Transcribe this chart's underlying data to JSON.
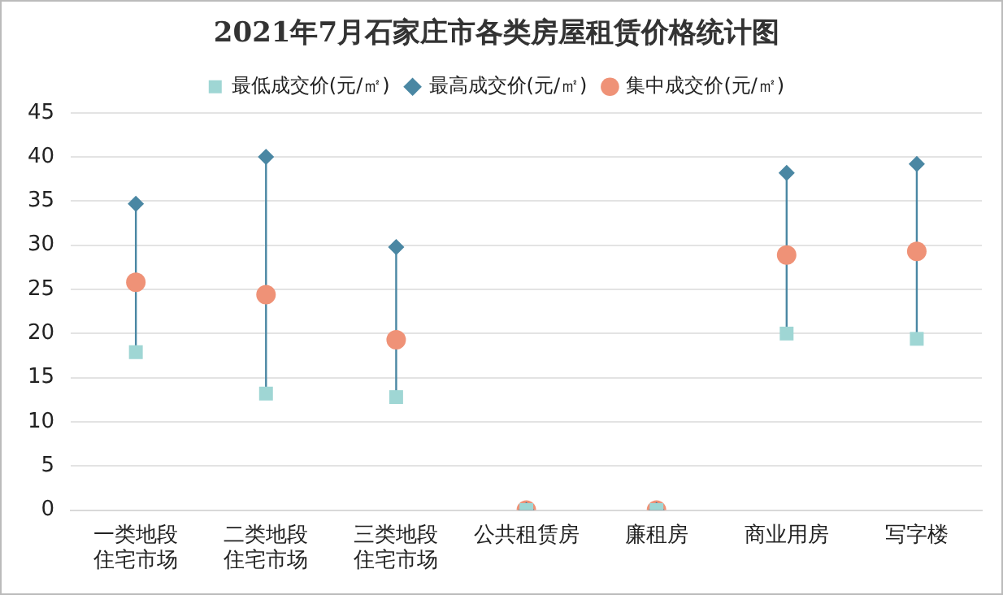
{
  "chart_data": {
    "type": "scatter",
    "title": "2021年7月石家庄市各类房屋租赁价格统计图",
    "categories": [
      "一类地段住宅市场",
      "二类地段住宅市场",
      "三类地段住宅市场",
      "公共租赁房",
      "廉租房",
      "商业用房",
      "写字楼"
    ],
    "series": [
      {
        "name": "最低成交价(元/㎡)",
        "color": "#9fd6d4",
        "marker": "square",
        "values": [
          17.9,
          13.2,
          12.8,
          0,
          0,
          20,
          19.4
        ]
      },
      {
        "name": "最高成交价(元/㎡)",
        "color": "#4a87a3",
        "marker": "diamond",
        "values": [
          34.7,
          40,
          29.8,
          0,
          0,
          38.2,
          39.2
        ]
      },
      {
        "name": "集中成交价(元/㎡)",
        "color": "#ef9277",
        "marker": "circle",
        "values": [
          25.8,
          24.4,
          19.3,
          0,
          0,
          28.9,
          29.3
        ]
      }
    ],
    "ylim": [
      0,
      45
    ],
    "yticks": [
      0,
      5,
      10,
      15,
      20,
      25,
      30,
      35,
      40,
      45
    ],
    "grid": "y",
    "legend": "top"
  }
}
